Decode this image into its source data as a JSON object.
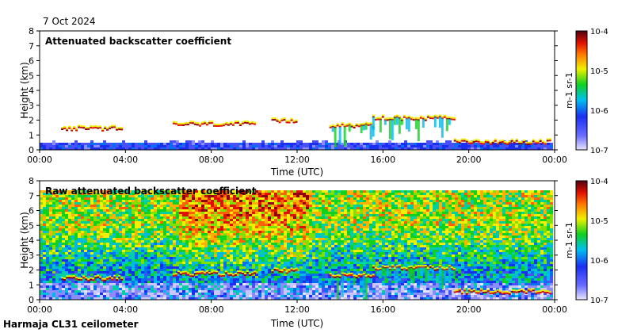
{
  "date_label": "7 Oct 2024",
  "footer_label": "Harmaja CL31 ceilometer",
  "colors": {
    "low": "#e8e6ff",
    "mid_blue": "#2a3cf0",
    "green": "#1ec81e",
    "yellow": "#f0f000",
    "red": "#e02000",
    "dark_red": "#500010"
  },
  "chart_data": [
    {
      "type": "heatmap",
      "title": "Attenuated backscatter coefficient",
      "xlabel": "Time (UTC)",
      "ylabel": "Height (km)",
      "xlim": [
        "00:00",
        "24:00"
      ],
      "ylim": [
        0,
        8
      ],
      "x_ticks": [
        "00:00",
        "04:00",
        "08:00",
        "12:00",
        "16:00",
        "20:00",
        "00:00"
      ],
      "y_ticks": [
        "0",
        "1",
        "2",
        "3",
        "4",
        "5",
        "6",
        "7",
        "8"
      ],
      "colorbar": {
        "scale": "log",
        "range": [
          1e-07,
          0.0001
        ],
        "tick_labels": [
          "10-7",
          "10-6",
          "10-5",
          "10-4"
        ],
        "units": "m-1 sr-1"
      },
      "cloud_layers": [
        {
          "start_h": 1.0,
          "end_h": 3.8,
          "height_km": 1.4
        },
        {
          "start_h": 6.2,
          "end_h": 10.0,
          "height_km": 1.7
        },
        {
          "start_h": 10.8,
          "end_h": 12.0,
          "height_km": 1.9
        },
        {
          "start_h": 13.5,
          "end_h": 15.5,
          "height_km": 1.6
        },
        {
          "start_h": 15.5,
          "end_h": 19.3,
          "height_km": 2.1
        },
        {
          "start_h": 19.3,
          "end_h": 23.8,
          "height_km": 0.5
        }
      ]
    },
    {
      "type": "heatmap",
      "title": "Raw attenuated backscatter coefficient",
      "xlabel": "Time (UTC)",
      "ylabel": "Height (km)",
      "xlim": [
        "00:00",
        "24:00"
      ],
      "ylim": [
        0,
        8
      ],
      "x_ticks": [
        "00:00",
        "04:00",
        "08:00",
        "12:00",
        "16:00",
        "20:00",
        "00:00"
      ],
      "y_ticks": [
        "0",
        "1",
        "2",
        "3",
        "4",
        "5",
        "6",
        "7",
        "8"
      ],
      "colorbar": {
        "scale": "log",
        "range": [
          1e-07,
          0.0001
        ],
        "tick_labels": [
          "10-7",
          "10-6",
          "10-5",
          "10-4"
        ],
        "units": "m-1 sr-1"
      }
    }
  ]
}
